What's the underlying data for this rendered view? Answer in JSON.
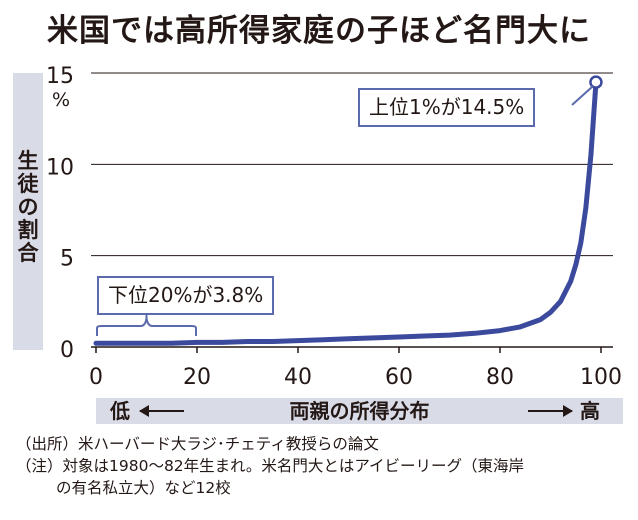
{
  "title": "米国では高所得家庭の子ほど名門大に",
  "chart_data": {
    "type": "line",
    "ylabel": "生徒の割合",
    "yunit": "%",
    "xlabel": "両親の所得分布",
    "xlabel_low": "低",
    "xlabel_high": "高",
    "xlim": [
      0,
      100
    ],
    "ylim": [
      0,
      15
    ],
    "xticks": [
      "0",
      "20",
      "40",
      "60",
      "80",
      "100"
    ],
    "yticks": [
      "0",
      "5",
      "10",
      "15"
    ],
    "grid": "horizontal",
    "series_color": "#3b4a9c",
    "x": [
      0,
      5,
      10,
      15,
      20,
      25,
      30,
      35,
      40,
      45,
      50,
      55,
      60,
      65,
      70,
      75,
      80,
      84,
      88,
      90,
      92,
      94,
      95,
      96,
      97,
      98,
      99
    ],
    "y": [
      0.2,
      0.2,
      0.2,
      0.2,
      0.25,
      0.25,
      0.3,
      0.3,
      0.35,
      0.4,
      0.45,
      0.5,
      0.55,
      0.6,
      0.65,
      0.75,
      0.9,
      1.1,
      1.5,
      1.9,
      2.5,
      3.6,
      4.5,
      5.7,
      7.6,
      10.5,
      14.5
    ],
    "annotations": [
      {
        "text": "上位1%が14.5%",
        "x": 99,
        "y": 14.5
      },
      {
        "text": "下位20%が3.8%",
        "range": [
          0,
          20
        ]
      }
    ]
  },
  "notes": [
    "（出所）米ハーバード大ラジ･チェティ教授らの論文",
    "（注）対象は1980～82年生まれ。米名門大とはアイビーリーグ（東海岸",
    "の有名私立大）など12校"
  ]
}
